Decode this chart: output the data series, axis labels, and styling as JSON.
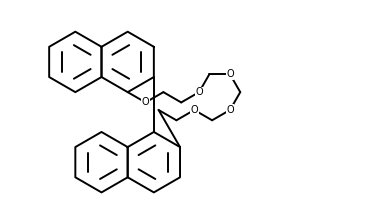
{
  "bg_color": "#ffffff",
  "line_color": "#000000",
  "line_width": 1.4,
  "figsize": [
    3.86,
    2.09
  ],
  "dpi": 100,
  "o_fontsize": 7.0,
  "r": 0.44,
  "ao": 30,
  "xlim": [
    -2.55,
    3.05
  ],
  "ylim": [
    -1.5,
    1.5
  ]
}
